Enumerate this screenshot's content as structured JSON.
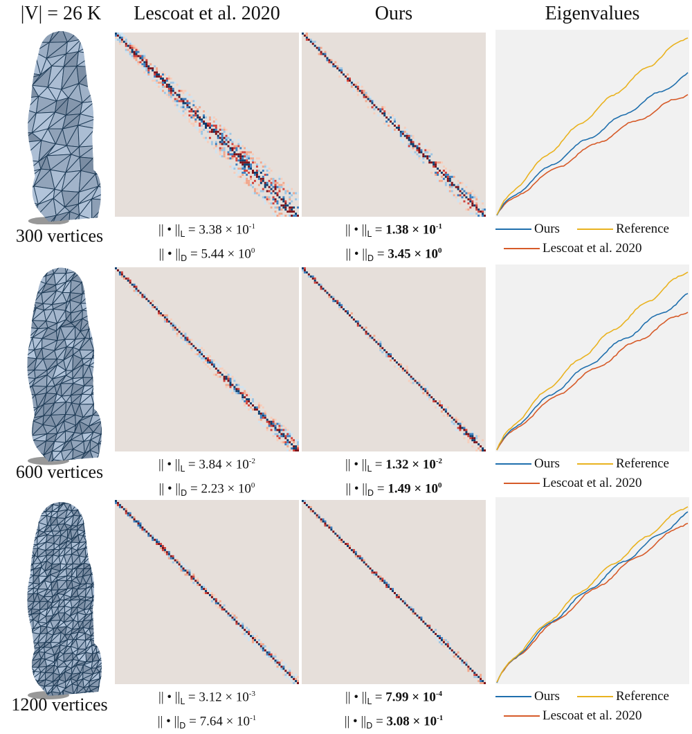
{
  "top_label": "|V| = 26 K",
  "headers": {
    "lescoat": "Lescoat et al. 2020",
    "ours": "Ours",
    "eig": "Eigenvalues"
  },
  "legend": {
    "ours": "Ours",
    "reference": "Reference",
    "lescoat": "Lescoat et al. 2020"
  },
  "norm_prefix": {
    "L": "|| • ||",
    "L_sub": "L",
    "D": "|| • ||",
    "D_sub": "D"
  },
  "colors": {
    "ours": "#1f6fad",
    "reference": "#e9b21f",
    "lescoat": "#d65a28",
    "matrix_bg": "#e6dfda",
    "eig_bg": "#f1f1f1",
    "mesh": "#8aa3b8"
  },
  "rows": [
    {
      "label": "300 vertices",
      "lescoat": {
        "L": "3.38 × 10",
        "L_exp": "-1",
        "D": "5.44 × 10",
        "D_exp": "0"
      },
      "ours": {
        "L": "1.38 × 10",
        "L_exp": "-1",
        "D": "3.45 × 10",
        "D_exp": "0"
      }
    },
    {
      "label": "600 vertices",
      "lescoat": {
        "L": "3.84 × 10",
        "L_exp": "-2",
        "D": "2.23 × 10",
        "D_exp": "0"
      },
      "ours": {
        "L": "1.32 × 10",
        "L_exp": "-2",
        "D": "1.49 × 10",
        "D_exp": "0"
      }
    },
    {
      "label": "1200 vertices",
      "lescoat": {
        "L": "3.12 × 10",
        "L_exp": "-3",
        "D": "7.64 × 10",
        "D_exp": "-1"
      },
      "ours": {
        "L": "7.99 × 10",
        "L_exp": "-4",
        "D": "3.08 × 10",
        "D_exp": "-1"
      }
    }
  ]
}
